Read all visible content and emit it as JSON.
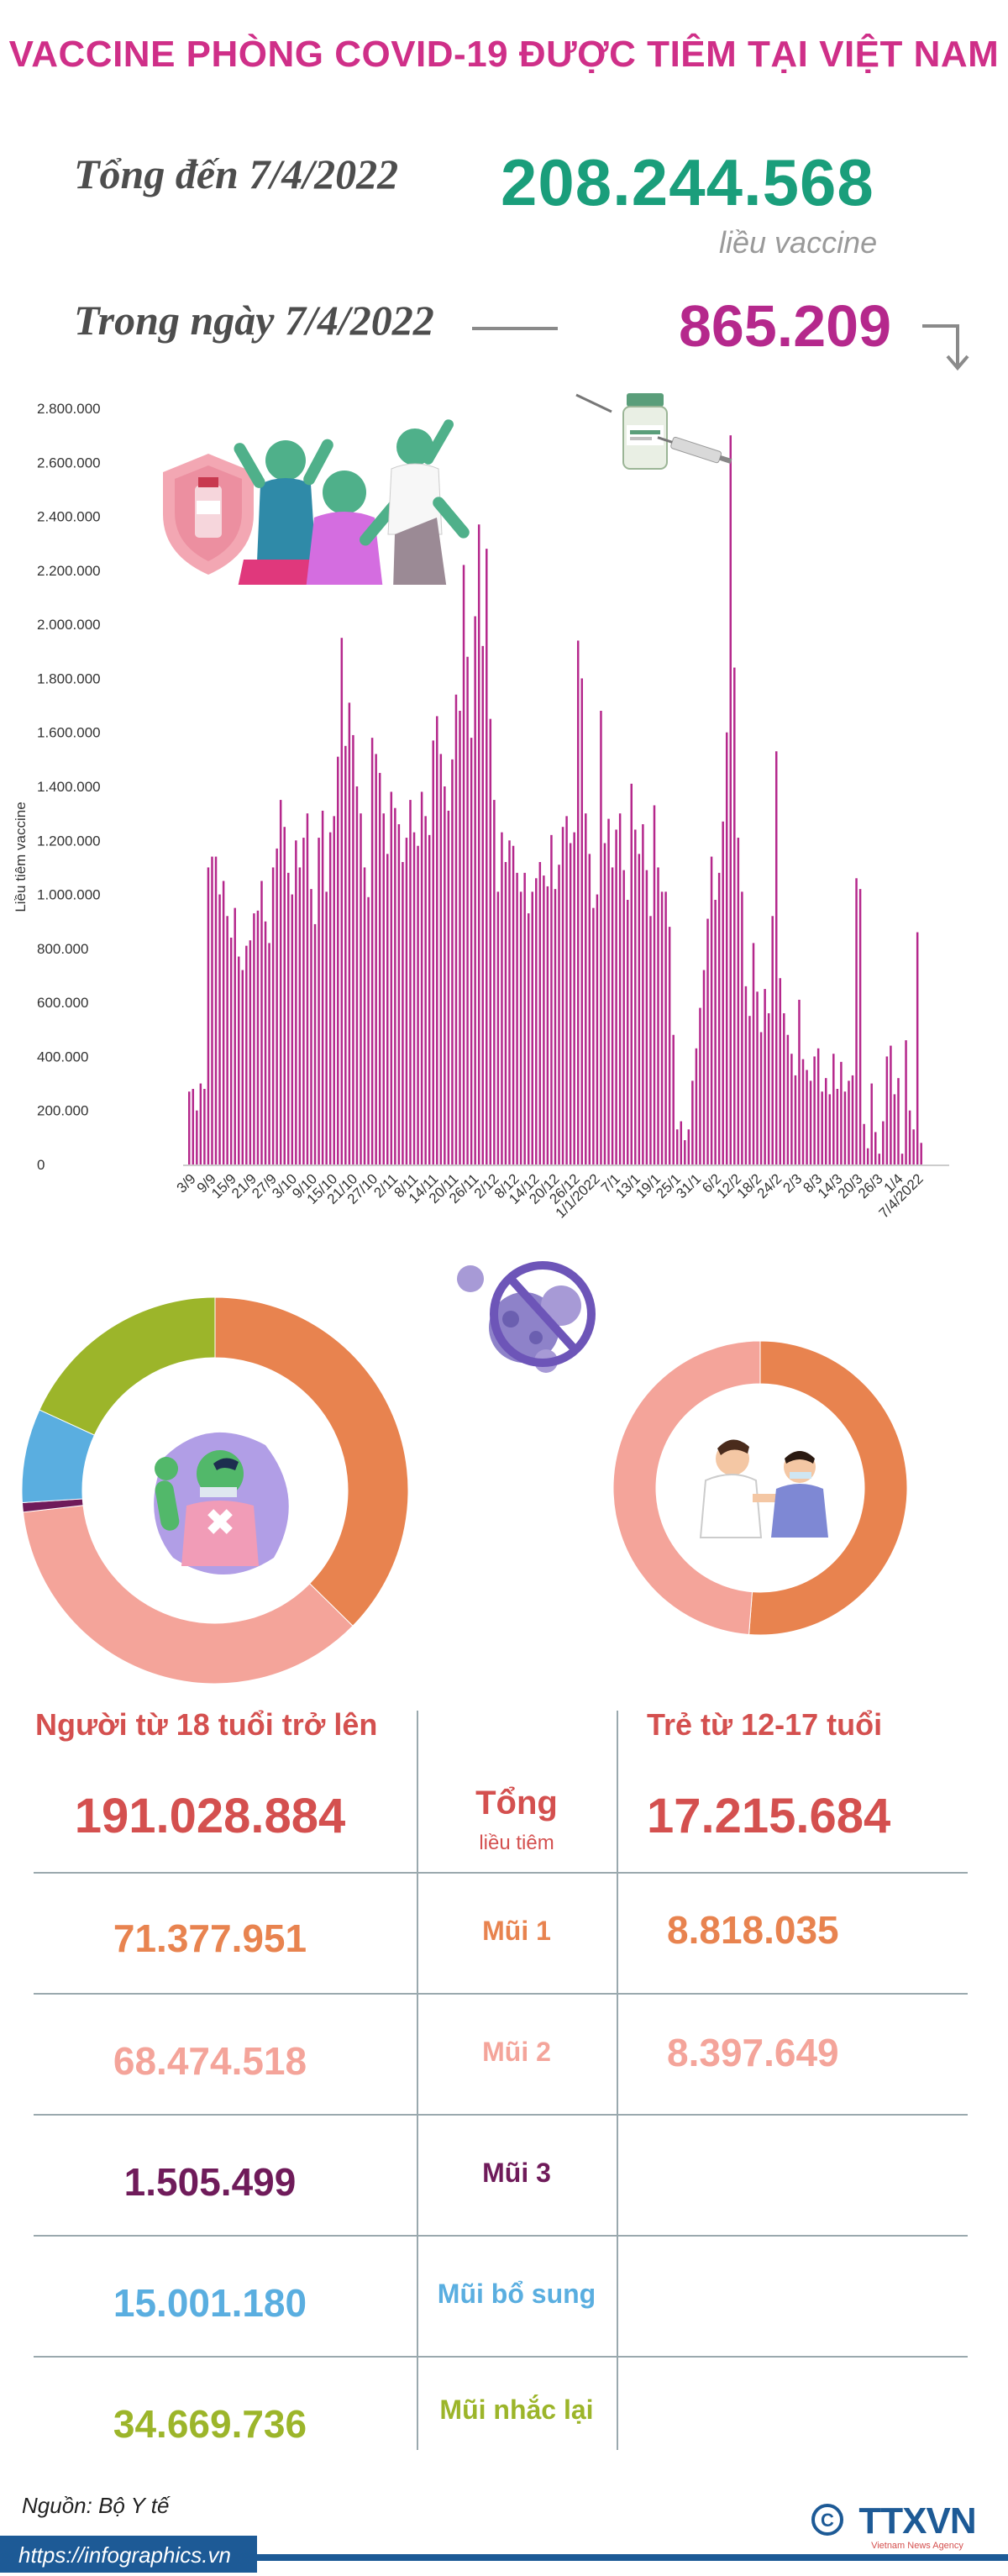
{
  "title": "VACCINE PHÒNG COVID-19 ĐƯỢC TIÊM TẠI VIỆT NAM",
  "summary": {
    "total_label": "Tổng đến 7/4/2022",
    "total_value": "208.244.568",
    "total_unit": "liều vaccine",
    "day_label": "Trong ngày 7/4/2022",
    "day_value": "865.209"
  },
  "icons": [
    "arrow-down-icon",
    "people-celebrating-illustration",
    "vaccine-syringe-icon",
    "no-virus-icon",
    "strong-arm-person-illustration",
    "nurse-vaccinating-child-illustration",
    "copyright-icon"
  ],
  "colors": {
    "title": "#cf2f88",
    "total": "#1a9e7b",
    "day": "#b5288c",
    "bar": "#b5288c",
    "dose1": "#e8834f",
    "dose2": "#f4a49a",
    "dose3": "#6f1b5a",
    "additional": "#5aaee0",
    "booster": "#9cb52a"
  },
  "chart_data": {
    "type": "bar",
    "ylabel": "Liều tiêm vaccine",
    "ylim": [
      0,
      2800000
    ],
    "yticks": [
      "0",
      "200.000",
      "400.000",
      "600.000",
      "800.000",
      "1.000.000",
      "1.200.000",
      "1.400.000",
      "1.600.000",
      "1.800.000",
      "2.000.000",
      "2.200.000",
      "2.400.000",
      "2.600.000",
      "2.800.000"
    ],
    "xticks": [
      "3/9",
      "9/9",
      "15/9",
      "21/9",
      "27/9",
      "3/10",
      "9/10",
      "15/10",
      "21/10",
      "27/10",
      "2/11",
      "8/11",
      "14/11",
      "20/11",
      "26/11",
      "2/12",
      "8/12",
      "14/12",
      "20/12",
      "26/12",
      "1/1/2022",
      "7/1",
      "13/1",
      "19/1",
      "25/1",
      "31/1",
      "6/2",
      "12/2",
      "18/2",
      "24/2",
      "2/3",
      "8/3",
      "14/3",
      "20/3",
      "26/3",
      "1/4",
      "7/4/2022"
    ],
    "values": [
      270000,
      280000,
      200000,
      300000,
      280000,
      1100000,
      1140000,
      1140000,
      1000000,
      1050000,
      920000,
      840000,
      950000,
      770000,
      720000,
      810000,
      830000,
      930000,
      940000,
      1050000,
      900000,
      820000,
      1100000,
      1170000,
      1350000,
      1250000,
      1080000,
      1000000,
      1200000,
      1100000,
      1210000,
      1300000,
      1020000,
      890000,
      1210000,
      1310000,
      1010000,
      1230000,
      1290000,
      1510000,
      1950000,
      1550000,
      1710000,
      1590000,
      1400000,
      1300000,
      1100000,
      990000,
      1580000,
      1520000,
      1450000,
      1300000,
      1150000,
      1380000,
      1320000,
      1260000,
      1120000,
      1210000,
      1350000,
      1230000,
      1180000,
      1380000,
      1290000,
      1220000,
      1570000,
      1660000,
      1520000,
      1400000,
      1310000,
      1500000,
      1740000,
      1680000,
      2220000,
      1880000,
      1580000,
      2030000,
      2370000,
      1920000,
      2280000,
      1650000,
      1350000,
      1010000,
      1230000,
      1120000,
      1200000,
      1180000,
      1080000,
      1010000,
      1080000,
      930000,
      1010000,
      1060000,
      1120000,
      1070000,
      1030000,
      1220000,
      1020000,
      1110000,
      1250000,
      1290000,
      1190000,
      1230000,
      1940000,
      1800000,
      1300000,
      1150000,
      950000,
      1000000,
      1680000,
      1190000,
      1280000,
      1100000,
      1240000,
      1300000,
      1090000,
      980000,
      1410000,
      1240000,
      1150000,
      1260000,
      1090000,
      920000,
      1330000,
      1100000,
      1010000,
      1010000,
      880000,
      480000,
      130000,
      160000,
      90000,
      130000,
      310000,
      430000,
      580000,
      720000,
      910000,
      1140000,
      980000,
      1080000,
      1270000,
      1600000,
      2700000,
      1840000,
      1210000,
      1010000,
      660000,
      550000,
      820000,
      640000,
      490000,
      650000,
      560000,
      920000,
      1530000,
      690000,
      560000,
      480000,
      410000,
      330000,
      610000,
      390000,
      350000,
      310000,
      400000,
      430000,
      270000,
      320000,
      260000,
      410000,
      280000,
      380000,
      270000,
      310000,
      330000,
      1060000,
      1020000,
      150000,
      60000,
      300000,
      120000,
      40000,
      160000,
      400000,
      440000,
      260000,
      320000,
      40000,
      460000,
      200000,
      130000,
      860000,
      80000
    ]
  },
  "donuts": {
    "adults": {
      "segments": [
        {
          "name": "Mũi 1",
          "value": 71377951
        },
        {
          "name": "Mũi 2",
          "value": 68474518
        },
        {
          "name": "Mũi 3",
          "value": 1505499
        },
        {
          "name": "Mũi bổ sung",
          "value": 15001180
        },
        {
          "name": "Mũi nhắc lại",
          "value": 34669736
        }
      ]
    },
    "children": {
      "segments": [
        {
          "name": "Mũi 1",
          "value": 8818035
        },
        {
          "name": "Mũi 2",
          "value": 8397649
        }
      ]
    }
  },
  "table": {
    "header_adult": "Người từ 18 tuổi trở lên",
    "header_child": "Trẻ từ 12-17 tuổi",
    "rows": [
      {
        "label": "Tổng",
        "sublabel": "liều tiêm",
        "adult": "191.028.884",
        "child": "17.215.684"
      },
      {
        "label": "Mũi 1",
        "adult": "71.377.951",
        "child": "8.818.035"
      },
      {
        "label": "Mũi 2",
        "adult": "68.474.518",
        "child": "8.397.649"
      },
      {
        "label": "Mũi 3",
        "adult": "1.505.499",
        "child": ""
      },
      {
        "label": "Mũi bổ sung",
        "adult": "15.001.180",
        "child": ""
      },
      {
        "label": "Mũi nhắc lại",
        "adult": "34.669.736",
        "child": ""
      }
    ]
  },
  "footer": {
    "source": "Nguồn: Bộ Y tế",
    "url": "https://infographics.vn",
    "logo_text": "TTXVN",
    "logo_sub": "Vietnam News Agency"
  }
}
